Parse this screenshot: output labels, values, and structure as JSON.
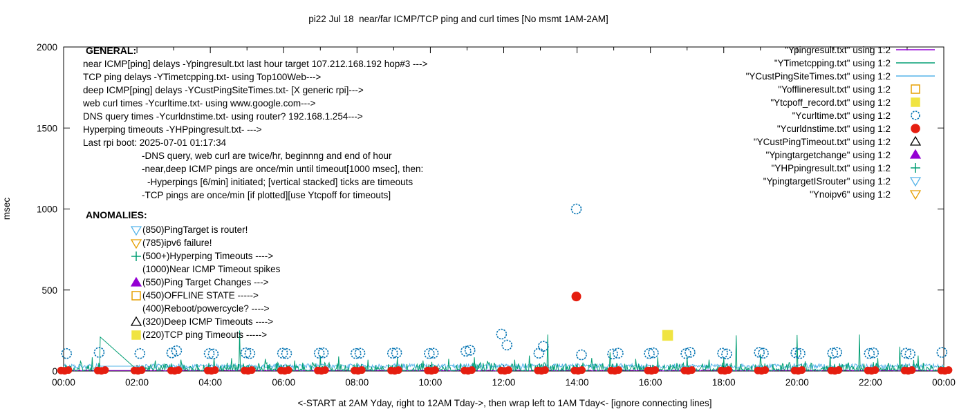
{
  "title": "pi22 Jul 18  near/far ICMP/TCP ping and curl times [No msmt 1AM-2AM]",
  "axes": {
    "ylabel": "msec",
    "xlabel": "<-START at 2AM Yday, right to 12AM Tday->, then wrap left to 1AM Tday<- [ignore connecting lines]",
    "y_ticks": [
      0,
      500,
      1000,
      1500,
      2000
    ],
    "x_tick_labels": [
      "00:00",
      "02:00",
      "04:00",
      "06:00",
      "08:00",
      "10:00",
      "12:00",
      "14:00",
      "16:00",
      "18:00",
      "20:00",
      "22:00",
      "00:00"
    ],
    "ylim": [
      0,
      2000
    ],
    "xlim_hours": [
      0,
      24
    ],
    "grid": "off"
  },
  "colors": {
    "violet": "#9400d3",
    "seagreen": "#009e73",
    "skyblue": "#56b4e9",
    "orange": "#e69f00",
    "yellow": "#f0e442",
    "blue": "#0072b2",
    "red": "#e51e10",
    "black": "#000000"
  },
  "legend": {
    "position": "top-right-inside",
    "entries": [
      {
        "label": "\"Ypingresult.txt\" using 1:2",
        "marker": "line",
        "color": "#9400d3"
      },
      {
        "label": "\"YTimetcpping.txt\" using 1:2",
        "marker": "line",
        "color": "#009e73"
      },
      {
        "label": "\"YCustPingSiteTimes.txt\" using 1:2",
        "marker": "line",
        "color": "#56b4e9"
      },
      {
        "label": "\"Yofflineresult.txt\" using 1:2",
        "marker": "square",
        "color": "#e69f00"
      },
      {
        "label": "\"Ytcpoff_record.txt\" using 1:2",
        "marker": "square-filled",
        "color": "#f0e442"
      },
      {
        "label": "\"Ycurltime.txt\" using 1:2",
        "marker": "circle",
        "color": "#0072b2"
      },
      {
        "label": "\"Ycurldnstime.txt\" using 1:2",
        "marker": "circle-filled",
        "color": "#e51e10"
      },
      {
        "label": "\"YCustPingTimeout.txt\" using 1:2",
        "marker": "triangle-up",
        "color": "#000000"
      },
      {
        "label": "\"Ypingtargetchange\" using 1:2",
        "marker": "triangle-up-filled",
        "color": "#9400d3"
      },
      {
        "label": "\"YHPpingresult.txt\" using 1:2",
        "marker": "plus",
        "color": "#009e73"
      },
      {
        "label": "\"YpingtargetISrouter\" using 1:2",
        "marker": "triangle-down",
        "color": "#56b4e9"
      },
      {
        "label": "\"Ynoipv6\" using 1:2",
        "marker": "triangle-down",
        "color": "#e69f00"
      }
    ]
  },
  "annotations": {
    "general": {
      "heading": "GENERAL:",
      "lines": [
        {
          "indent": 0,
          "text": "near ICMP[ping] delays -Ypingresult.txt last hour target 107.212.168.192 hop#3 --->"
        },
        {
          "indent": 0,
          "text": "TCP ping delays -YTimetcpping.txt- using Top100Web--->"
        },
        {
          "indent": 0,
          "text": "deep ICMP[ping] delays -YCustPingSiteTimes.txt- [X generic rpi]--->"
        },
        {
          "indent": 0,
          "text": "web curl times -Ycurltime.txt- using www.google.com--->"
        },
        {
          "indent": 0,
          "text": "DNS query times -Ycurldnstime.txt- using router? 192.168.1.254--->"
        },
        {
          "indent": 0,
          "text": "Hyperping timeouts -YHPpingresult.txt- --->"
        },
        {
          "indent": 0,
          "text": "Last rpi boot: 2025-07-01 01:17:34"
        },
        {
          "indent": 1,
          "text": "-DNS query, web curl are twice/hr, beginnng and end of hour"
        },
        {
          "indent": 1,
          "text": "-near,deep ICMP pings are once/min until timeout[1000 msec], then:"
        },
        {
          "indent": 2,
          "text": "-Hyperpings [6/min] initiated; [vertical stacked] ticks are timeouts"
        },
        {
          "indent": 1,
          "text": "-TCP pings are once/min [if plotted][use Ytcpoff for timeouts]"
        }
      ]
    },
    "anomalies": {
      "heading": "ANOMALIES:",
      "items": [
        {
          "marker": "triangle-down",
          "color": "#56b4e9",
          "text": "(850)PingTarget is router!"
        },
        {
          "marker": "triangle-down",
          "color": "#e69f00",
          "text": "(785)ipv6 failure!"
        },
        {
          "marker": "plus",
          "color": "#009e73",
          "text": "(500+)Hyperping Timeouts ---->"
        },
        {
          "marker": "none",
          "color": "",
          "text": "(1000)Near ICMP Timeout spikes"
        },
        {
          "marker": "triangle-up-filled",
          "color": "#9400d3",
          "text": "(550)Ping Target Changes --->"
        },
        {
          "marker": "square",
          "color": "#e69f00",
          "text": "(450)OFFLINE STATE ----->"
        },
        {
          "marker": "none",
          "color": "",
          "text": "(400)Reboot/powercycle? ---->"
        },
        {
          "marker": "triangle-up",
          "color": "#000000",
          "text": "(320)Deep ICMP Timeouts ---->"
        },
        {
          "marker": "square-filled",
          "color": "#f0e442",
          "text": "(220)TCP ping Timeouts ----->"
        }
      ]
    }
  },
  "chart_data": {
    "type": "line+scatter",
    "x_unit": "time of day, hours 0-24 (labels every 2h)",
    "y_unit": "msec",
    "ylim": [
      0,
      2000
    ],
    "no_measurement_window_hours": [
      1,
      2
    ],
    "series": [
      {
        "name": "Ypingresult.txt (near ICMP ping delays)",
        "type": "line",
        "color": "#9400d3",
        "baseline_msec": [
          1,
          6
        ],
        "note": "flat near-zero line hidden under other series"
      },
      {
        "name": "YTimetcpping.txt (TCP ping delays)",
        "type": "line",
        "color": "#009e73",
        "baseline_msec": [
          2,
          58
        ],
        "spikes": [
          [
            0.45,
            60
          ],
          [
            0.78,
            85
          ],
          [
            1.0,
            210
          ],
          [
            2.5,
            65
          ],
          [
            3.2,
            70
          ],
          [
            4.1,
            80
          ],
          [
            4.8,
            250
          ],
          [
            5.5,
            75
          ],
          [
            6.3,
            65
          ],
          [
            7.0,
            95
          ],
          [
            7.5,
            90
          ],
          [
            8.3,
            70
          ],
          [
            9.1,
            80
          ],
          [
            9.8,
            65
          ],
          [
            10.5,
            75
          ],
          [
            11.2,
            85
          ],
          [
            12.3,
            70
          ],
          [
            12.7,
            95
          ],
          [
            13.2,
            225
          ],
          [
            14.4,
            80
          ],
          [
            14.9,
            115
          ],
          [
            15.6,
            75
          ],
          [
            16.2,
            85
          ],
          [
            17.0,
            90
          ],
          [
            17.6,
            70
          ],
          [
            18.34,
            220
          ],
          [
            19.0,
            105
          ],
          [
            20.0,
            222
          ],
          [
            20.9,
            95
          ],
          [
            21.7,
            225
          ],
          [
            22.2,
            80
          ],
          [
            22.8,
            150
          ],
          [
            23.3,
            95
          ]
        ],
        "gap_bridge": {
          "from": [
            1.0,
            210
          ],
          "to": [
            2.0,
            8
          ]
        }
      },
      {
        "name": "YCustPingSiteTimes.txt (deep ICMP ping delays)",
        "type": "line",
        "color": "#56b4e9",
        "baseline_msec": [
          15,
          45
        ],
        "gap_bridge": {
          "from": [
            1.0,
            30
          ],
          "to": [
            2.0,
            30
          ]
        }
      },
      {
        "name": "Ycurltime.txt (web curl times)",
        "type": "scatter",
        "marker": "circle",
        "color": "#0072b2",
        "points": [
          [
            0.08,
            108
          ],
          [
            0.97,
            115
          ],
          [
            2.08,
            108
          ],
          [
            2.95,
            112
          ],
          [
            3.08,
            125
          ],
          [
            3.97,
            108
          ],
          [
            4.08,
            105
          ],
          [
            4.97,
            112
          ],
          [
            5.08,
            108
          ],
          [
            5.97,
            110
          ],
          [
            6.08,
            108
          ],
          [
            6.97,
            110
          ],
          [
            7.08,
            112
          ],
          [
            7.97,
            108
          ],
          [
            8.08,
            110
          ],
          [
            8.97,
            110
          ],
          [
            9.08,
            112
          ],
          [
            9.97,
            108
          ],
          [
            10.08,
            110
          ],
          [
            10.97,
            122
          ],
          [
            11.08,
            128
          ],
          [
            11.94,
            228
          ],
          [
            12.09,
            160
          ],
          [
            12.96,
            110
          ],
          [
            13.08,
            153
          ],
          [
            13.98,
            1000
          ],
          [
            14.12,
            100
          ],
          [
            14.97,
            105
          ],
          [
            15.12,
            110
          ],
          [
            15.97,
            108
          ],
          [
            16.08,
            112
          ],
          [
            16.97,
            108
          ],
          [
            17.08,
            115
          ],
          [
            17.97,
            110
          ],
          [
            18.08,
            105
          ],
          [
            18.97,
            115
          ],
          [
            19.08,
            110
          ],
          [
            19.97,
            112
          ],
          [
            20.08,
            108
          ],
          [
            20.97,
            110
          ],
          [
            21.08,
            115
          ],
          [
            21.97,
            108
          ],
          [
            22.08,
            112
          ],
          [
            22.97,
            110
          ],
          [
            23.08,
            105
          ],
          [
            23.95,
            115
          ]
        ]
      },
      {
        "name": "Ycurldnstime.txt (DNS query times)",
        "type": "scatter",
        "marker": "circle-filled",
        "color": "#e51e10",
        "cluster_hours": [
          0,
          1,
          2,
          3,
          4,
          5,
          6,
          7,
          8,
          9,
          10,
          11,
          12,
          13,
          14,
          15,
          16,
          17,
          18,
          19,
          20,
          21,
          22,
          23,
          24
        ],
        "cluster_msec_range": [
          0,
          8
        ],
        "outlier_points": [
          [
            13.98,
            460
          ]
        ]
      },
      {
        "name": "Ytcpoff_record.txt (TCP ping timeouts)",
        "type": "scatter",
        "marker": "square-filled",
        "color": "#f0e442",
        "points": [
          [
            16.47,
            220
          ]
        ]
      },
      {
        "name": "Yofflineresult.txt",
        "type": "scatter",
        "marker": "square",
        "color": "#e69f00",
        "points": []
      },
      {
        "name": "YCustPingTimeout.txt",
        "type": "scatter",
        "marker": "triangle-up",
        "color": "#000000",
        "points": []
      },
      {
        "name": "Ypingtargetchange",
        "type": "scatter",
        "marker": "triangle-up-filled",
        "color": "#9400d3",
        "points": []
      },
      {
        "name": "YHPpingresult.txt",
        "type": "scatter",
        "marker": "plus",
        "color": "#009e73",
        "points": []
      },
      {
        "name": "YpingtargetISrouter",
        "type": "scatter",
        "marker": "triangle-down",
        "color": "#56b4e9",
        "points": []
      },
      {
        "name": "Ynoipv6",
        "type": "scatter",
        "marker": "triangle-down",
        "color": "#e69f00",
        "points": []
      }
    ]
  }
}
